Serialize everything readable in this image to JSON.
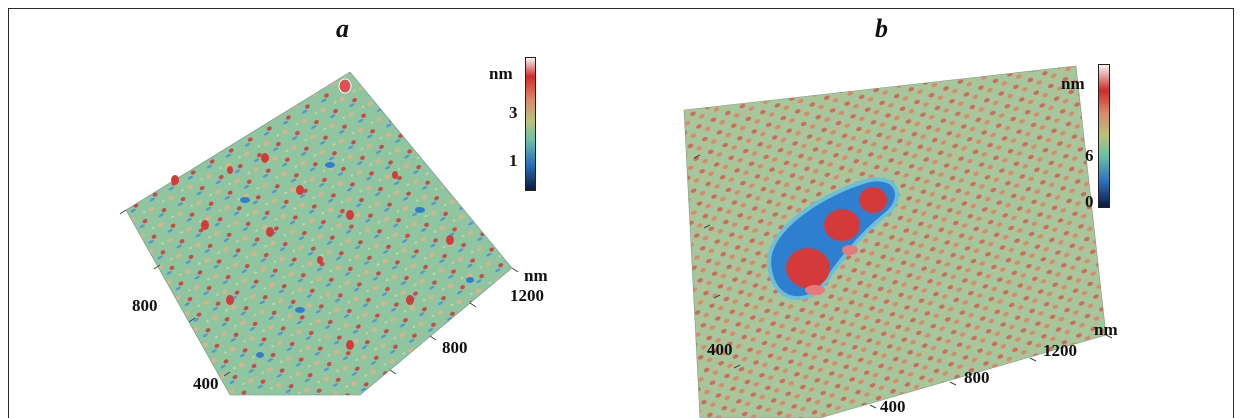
{
  "panels": [
    {
      "letter": "a",
      "colorbar": {
        "unit": "nm",
        "ticks": [
          "3",
          "1"
        ]
      },
      "axis_unit": "nm",
      "axis_right_ticks": [
        "1200",
        "800"
      ],
      "axis_left_ticks": [
        "800",
        "400"
      ]
    },
    {
      "letter": "b",
      "colorbar": {
        "unit": "nm",
        "ticks": [
          "6",
          "0"
        ]
      },
      "axis_unit": "nm",
      "axis_right_ticks": [
        "1200",
        "800",
        "400"
      ],
      "axis_left_ticks": [
        "400"
      ]
    }
  ],
  "colors": {
    "surface_green": "#8fc6a0",
    "peak_red": "#d43a3a",
    "valley_blue": "#2f7fd0",
    "b_surface": "#b9a27d"
  }
}
